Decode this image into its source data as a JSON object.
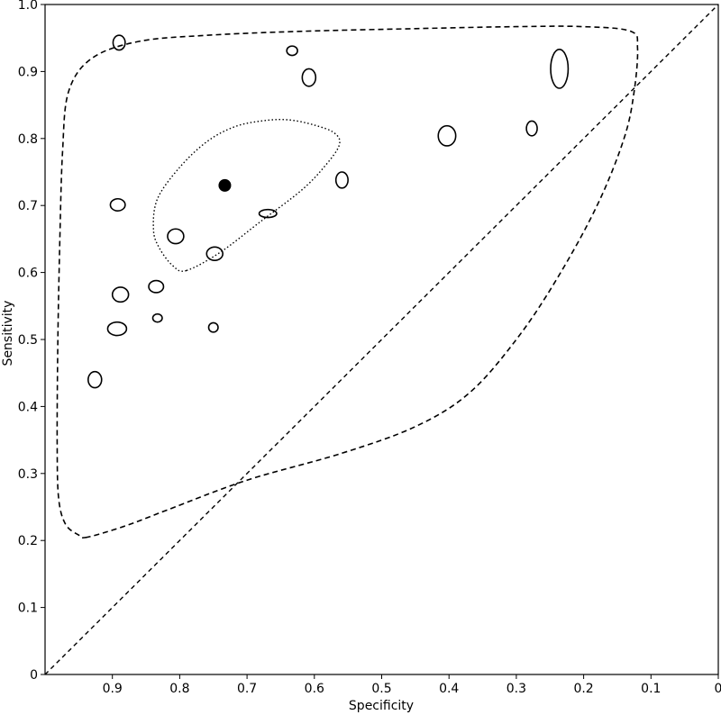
{
  "chart_data": {
    "type": "scatter",
    "title": "",
    "xlabel": "Specificity",
    "ylabel": "Sensitivity",
    "x_reversed": true,
    "xlim": [
      1.0,
      0.0
    ],
    "ylim": [
      0.0,
      1.0
    ],
    "x_ticks": [
      {
        "value": 0.9,
        "label": "0.9"
      },
      {
        "value": 0.8,
        "label": "0.8"
      },
      {
        "value": 0.7,
        "label": "0.7"
      },
      {
        "value": 0.6,
        "label": "0.6"
      },
      {
        "value": 0.5,
        "label": "0.5"
      },
      {
        "value": 0.4,
        "label": "0.4"
      },
      {
        "value": 0.3,
        "label": "0.3"
      },
      {
        "value": 0.2,
        "label": "0.2"
      },
      {
        "value": 0.1,
        "label": "0.1"
      },
      {
        "value": 0.0,
        "label": "0"
      }
    ],
    "y_ticks": [
      {
        "value": 0.0,
        "label": "0"
      },
      {
        "value": 0.1,
        "label": "0.1"
      },
      {
        "value": 0.2,
        "label": "0.2"
      },
      {
        "value": 0.3,
        "label": "0.3"
      },
      {
        "value": 0.4,
        "label": "0.4"
      },
      {
        "value": 0.5,
        "label": "0.5"
      },
      {
        "value": 0.6,
        "label": "0.6"
      },
      {
        "value": 0.7,
        "label": "0.7"
      },
      {
        "value": 0.8,
        "label": "0.8"
      },
      {
        "value": 0.9,
        "label": "0.9"
      },
      {
        "value": 1.0,
        "label": "1.0"
      }
    ],
    "grid": false,
    "studies": [
      {
        "specificity": 0.89,
        "sensitivity": 0.943,
        "size": [
          0.009,
          0.011
        ]
      },
      {
        "specificity": 0.633,
        "sensitivity": 0.931,
        "size": [
          0.008,
          0.007
        ]
      },
      {
        "specificity": 0.608,
        "sensitivity": 0.891,
        "size": [
          0.01,
          0.013
        ]
      },
      {
        "specificity": 0.236,
        "sensitivity": 0.904,
        "size": [
          0.013,
          0.029
        ]
      },
      {
        "specificity": 0.403,
        "sensitivity": 0.804,
        "size": [
          0.013,
          0.015
        ]
      },
      {
        "specificity": 0.277,
        "sensitivity": 0.815,
        "size": [
          0.008,
          0.011
        ]
      },
      {
        "specificity": 0.559,
        "sensitivity": 0.738,
        "size": [
          0.009,
          0.012
        ]
      },
      {
        "specificity": 0.892,
        "sensitivity": 0.701,
        "size": [
          0.011,
          0.009
        ]
      },
      {
        "specificity": 0.669,
        "sensitivity": 0.688,
        "size": [
          0.013,
          0.006
        ]
      },
      {
        "specificity": 0.806,
        "sensitivity": 0.654,
        "size": [
          0.012,
          0.011
        ]
      },
      {
        "specificity": 0.748,
        "sensitivity": 0.628,
        "size": [
          0.012,
          0.01
        ]
      },
      {
        "specificity": 0.835,
        "sensitivity": 0.579,
        "size": [
          0.011,
          0.009
        ]
      },
      {
        "specificity": 0.888,
        "sensitivity": 0.567,
        "size": [
          0.012,
          0.011
        ]
      },
      {
        "specificity": 0.833,
        "sensitivity": 0.532,
        "size": [
          0.007,
          0.006
        ]
      },
      {
        "specificity": 0.893,
        "sensitivity": 0.516,
        "size": [
          0.014,
          0.01
        ]
      },
      {
        "specificity": 0.75,
        "sensitivity": 0.518,
        "size": [
          0.007,
          0.007
        ]
      },
      {
        "specificity": 0.926,
        "sensitivity": 0.44,
        "size": [
          0.01,
          0.012
        ]
      }
    ],
    "summary_point": {
      "specificity": 0.733,
      "sensitivity": 0.73
    },
    "confidence_region": [
      [
        0.79,
        0.603
      ],
      [
        0.81,
        0.61
      ],
      [
        0.83,
        0.636
      ],
      [
        0.839,
        0.664
      ],
      [
        0.833,
        0.71
      ],
      [
        0.8,
        0.757
      ],
      [
        0.76,
        0.795
      ],
      [
        0.72,
        0.817
      ],
      [
        0.68,
        0.826
      ],
      [
        0.64,
        0.828
      ],
      [
        0.6,
        0.82
      ],
      [
        0.57,
        0.808
      ],
      [
        0.563,
        0.79
      ],
      [
        0.585,
        0.758
      ],
      [
        0.62,
        0.722
      ],
      [
        0.68,
        0.676
      ],
      [
        0.74,
        0.63
      ]
    ],
    "prediction_region": [
      [
        0.937,
        0.205
      ],
      [
        0.95,
        0.208
      ],
      [
        0.97,
        0.225
      ],
      [
        0.98,
        0.265
      ],
      [
        0.982,
        0.35
      ],
      [
        0.981,
        0.5
      ],
      [
        0.978,
        0.65
      ],
      [
        0.974,
        0.78
      ],
      [
        0.965,
        0.87
      ],
      [
        0.93,
        0.92
      ],
      [
        0.86,
        0.945
      ],
      [
        0.76,
        0.954
      ],
      [
        0.62,
        0.96
      ],
      [
        0.45,
        0.964
      ],
      [
        0.3,
        0.967
      ],
      [
        0.2,
        0.967
      ],
      [
        0.13,
        0.96
      ],
      [
        0.12,
        0.935
      ],
      [
        0.125,
        0.87
      ],
      [
        0.14,
        0.8
      ],
      [
        0.18,
        0.7
      ],
      [
        0.24,
        0.59
      ],
      [
        0.3,
        0.5
      ],
      [
        0.37,
        0.42
      ],
      [
        0.45,
        0.37
      ],
      [
        0.56,
        0.33
      ],
      [
        0.7,
        0.29
      ],
      [
        0.82,
        0.245
      ],
      [
        0.88,
        0.222
      ]
    ],
    "reference_line": [
      [
        1.0,
        0.0
      ],
      [
        0.0,
        1.0
      ]
    ]
  }
}
